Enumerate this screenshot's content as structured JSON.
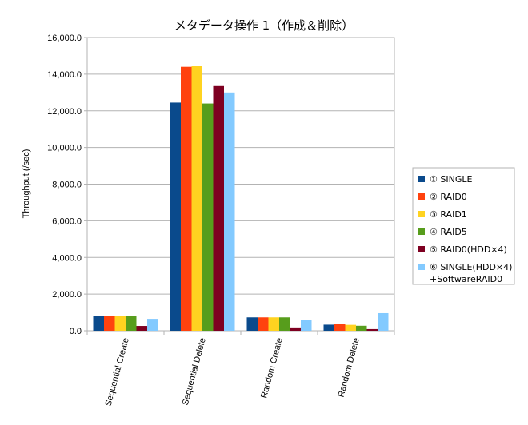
{
  "chart_data": {
    "type": "bar",
    "title": "メタデータ操作 1（作成＆削除）",
    "xlabel": "",
    "ylabel": "Throughput (/sec)",
    "ylim": [
      0,
      16000
    ],
    "yticks": [
      "0.0",
      "2,000.0",
      "4,000.0",
      "6,000.0",
      "8,000.0",
      "10,000.0",
      "12,000.0",
      "14,000.0",
      "16,000.0"
    ],
    "grid": true,
    "legend_position": "right",
    "categories": [
      "Sequential Create",
      "Sequential Delete",
      "Random Create",
      "Random Delete"
    ],
    "series": [
      {
        "name": "① SINGLE",
        "color": "#0a4a8c",
        "values": [
          820,
          12450,
          730,
          330
        ]
      },
      {
        "name": "② RAID0",
        "color": "#ff420e",
        "values": [
          820,
          14400,
          730,
          390
        ]
      },
      {
        "name": "③ RAID1",
        "color": "#ffd320",
        "values": [
          820,
          14450,
          730,
          320
        ]
      },
      {
        "name": "④ RAID5",
        "color": "#579d1c",
        "values": [
          820,
          12400,
          730,
          270
        ]
      },
      {
        "name": "⑤ RAID0(HDD×4)",
        "color": "#7e0021",
        "values": [
          260,
          13350,
          180,
          90
        ]
      },
      {
        "name": "⑥ SINGLE(HDD×4)\n+SoftwareRAID0",
        "color": "#83caff",
        "values": [
          650,
          13000,
          610,
          960
        ]
      }
    ]
  }
}
